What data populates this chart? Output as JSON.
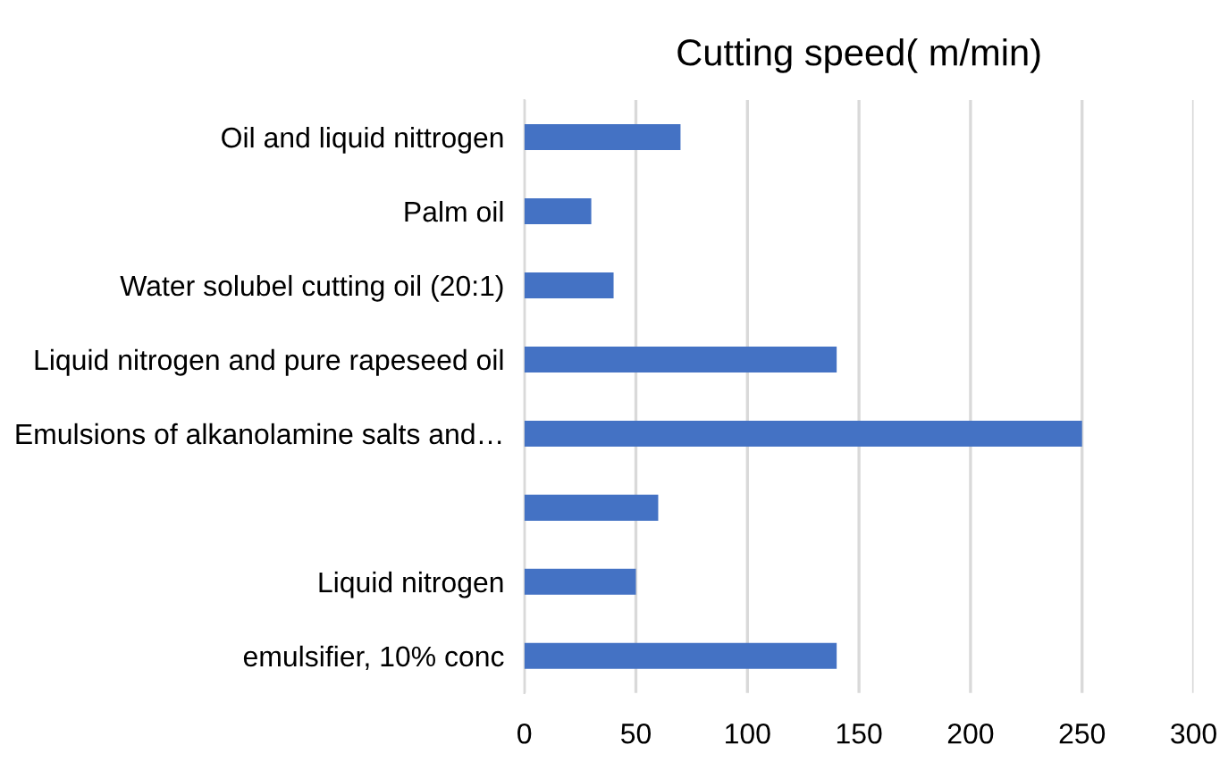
{
  "chart_data": {
    "type": "bar",
    "orientation": "horizontal",
    "title": "Cutting speed( m/min)",
    "categories": [
      "Oil and liquid nittrogen",
      "Palm oil",
      "Water solubel cutting oil (20:1)",
      "Liquid nitrogen and pure rapeseed oil",
      "Emulsions of alkanolamine salts and…",
      null,
      "Liquid nitrogen",
      "emulsifier, 10% conc"
    ],
    "values": [
      70,
      30,
      40,
      140,
      250,
      60,
      50,
      140
    ],
    "color": "#4472c4",
    "xlim": [
      0,
      300
    ],
    "xticks": [
      0,
      50,
      100,
      150,
      200,
      250,
      300
    ],
    "grid": "x",
    "legend": false
  }
}
